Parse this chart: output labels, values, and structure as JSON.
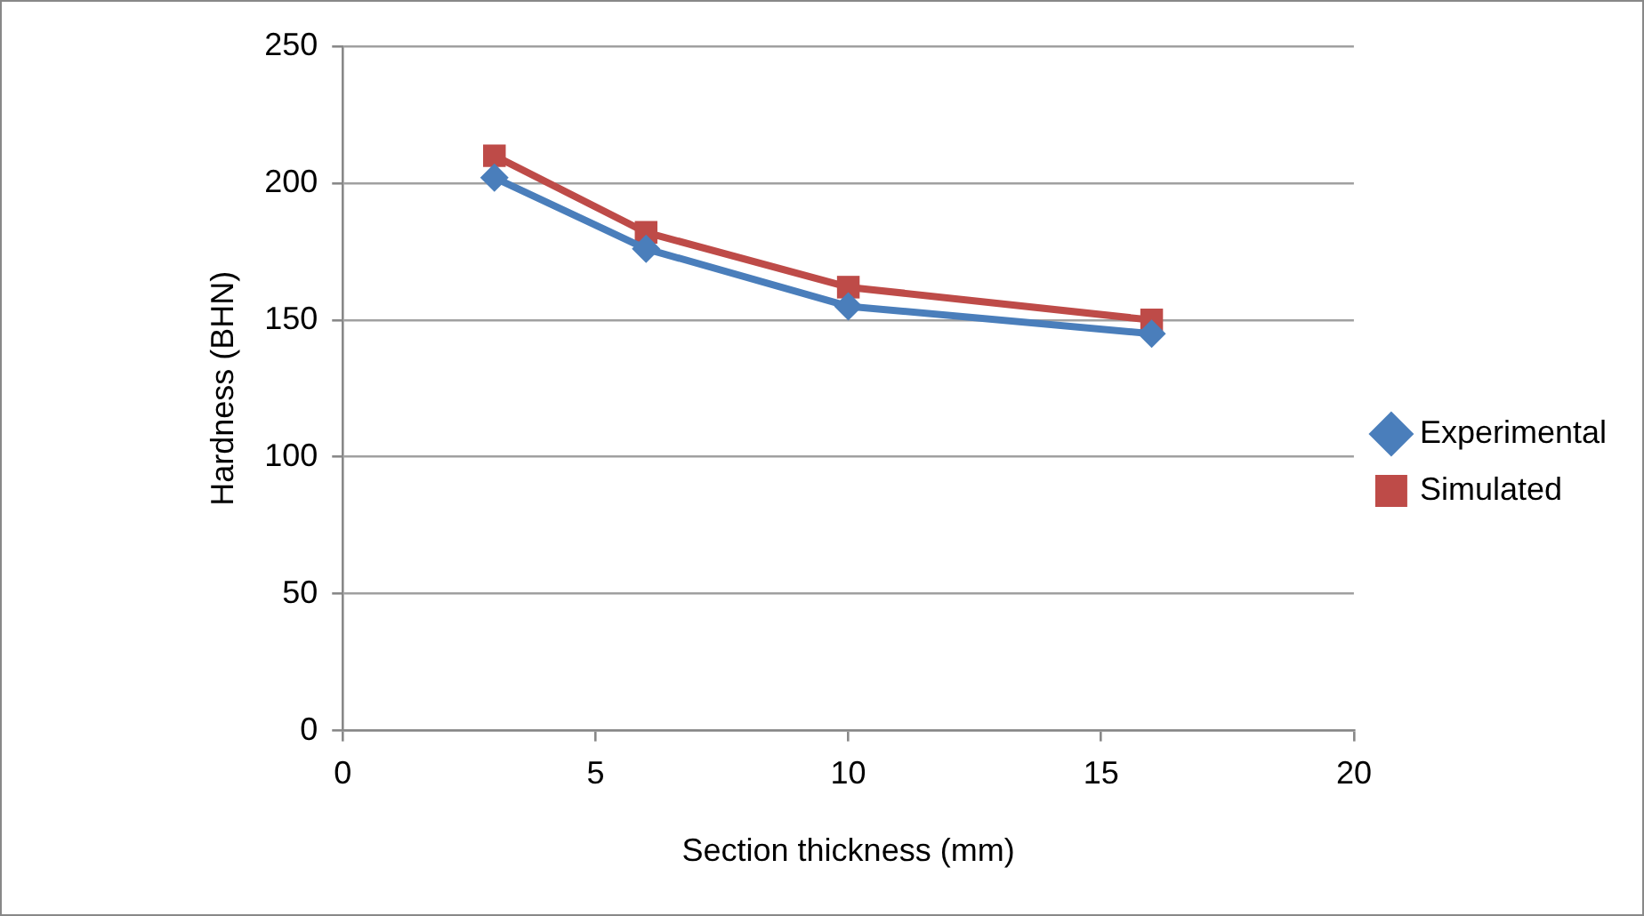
{
  "chart_data": {
    "type": "line",
    "xlabel": "Section thickness (mm)",
    "ylabel": "Hardness (BHN)",
    "x": [
      3,
      6,
      10,
      16
    ],
    "series": [
      {
        "name": "Experimental",
        "color": "#4a7ebb",
        "marker": "diamond",
        "values": [
          202,
          176,
          155,
          145
        ]
      },
      {
        "name": "Simulated",
        "color": "#be4b48",
        "marker": "square",
        "values": [
          210,
          182,
          162,
          150
        ]
      }
    ],
    "xlim": [
      0,
      20
    ],
    "xticks": [
      0,
      5,
      10,
      15,
      20
    ],
    "ylim": [
      0,
      250
    ],
    "yticks": [
      0,
      50,
      100,
      150,
      200,
      250
    ],
    "grid": "y",
    "legend": "right",
    "line_style": "solid"
  }
}
